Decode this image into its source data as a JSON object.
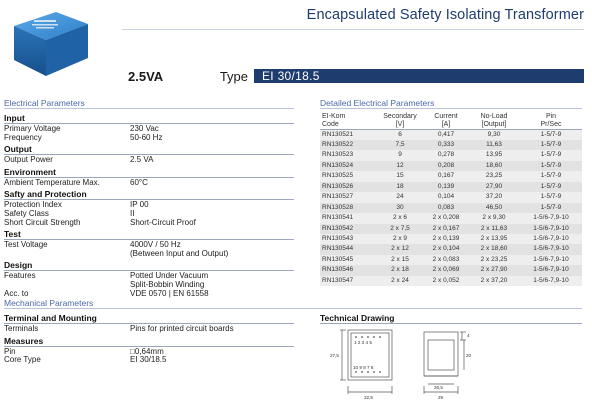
{
  "header": {
    "title": "Encapsulated Safety Isolating Transformer",
    "power_rating": "2.5VA",
    "type_label": "Type",
    "type_value": "EI 30/18.5"
  },
  "electrical_caption": "Electrical Parameters",
  "detailed_caption": "Detailed Electrical Parameters",
  "mechanical_caption": "Mechanical Parameters",
  "left_groups": [
    {
      "title": "Input",
      "rows": [
        {
          "k": "Primary Voltage",
          "v": "230 Vac"
        },
        {
          "k": "Frequency",
          "v": "50-60 Hz"
        }
      ]
    },
    {
      "title": "Output",
      "rows": [
        {
          "k": "Output Power",
          "v": "2.5 VA"
        }
      ]
    },
    {
      "title": "Environment",
      "rows": [
        {
          "k": "Ambient Temperature Max.",
          "v": "60°C"
        }
      ]
    },
    {
      "title": "Safty and Protection",
      "rows": [
        {
          "k": "Protection Index",
          "v": "IP 00"
        },
        {
          "k": "Safety Class",
          "v": "II"
        },
        {
          "k": "Short Circuit Strength",
          "v": "Short-Circuit Proof"
        }
      ]
    },
    {
      "title": "Test",
      "rows": [
        {
          "k": "Test Voltage",
          "v": "4000V / 50 Hz"
        },
        {
          "k": "",
          "v": "(Between Input and Output)"
        }
      ]
    },
    {
      "title": "Design",
      "rows": [
        {
          "k": "Features",
          "v": "Potted Under Vacuum"
        },
        {
          "k": "",
          "v": "Split-Bobbin Winding"
        },
        {
          "k": "Acc. to",
          "v": "VDE 0570 | EN 61558"
        }
      ]
    }
  ],
  "mech_groups": [
    {
      "title": "Terminal and Mounting",
      "rows": [
        {
          "k": "Terminals",
          "v": "Pins for printed circuit boards"
        }
      ]
    },
    {
      "title": "Measures",
      "rows": [
        {
          "k": "Pin",
          "v": "□0,64mm"
        },
        {
          "k": "Core Type",
          "v": "EI 30/18.5"
        }
      ]
    }
  ],
  "detail_table": {
    "headers": [
      [
        "EI-Kom",
        "Code"
      ],
      [
        "Secondary",
        "[V]"
      ],
      [
        "Current",
        "[A]"
      ],
      [
        "No-Load",
        "[Output]"
      ],
      [
        "Pin",
        "Pr/Sec"
      ]
    ],
    "rows": [
      [
        "RN130521",
        "6",
        "0,417",
        "9,30",
        "1-5/7-9"
      ],
      [
        "RN130522",
        "7,5",
        "0,333",
        "11,63",
        "1-5/7-9"
      ],
      [
        "RN130523",
        "9",
        "0,278",
        "13,95",
        "1-5/7-9"
      ],
      [
        "RN130524",
        "12",
        "0,208",
        "18,60",
        "1-5/7-9"
      ],
      [
        "RN130525",
        "15",
        "0,167",
        "23,25",
        "1-5/7-9"
      ],
      [
        "RN130526",
        "18",
        "0,139",
        "27,90",
        "1-5/7-9"
      ],
      [
        "RN130527",
        "24",
        "0,104",
        "37,20",
        "1-5/7-9"
      ],
      [
        "RN130528",
        "30",
        "0,083",
        "46,50",
        "1-5/7-9"
      ],
      [
        "RN130541",
        "2 x 6",
        "2 x 0,208",
        "2 x 9,30",
        "1-5/6-7,9-10"
      ],
      [
        "RN130542",
        "2 x 7,5",
        "2 x 0,167",
        "2 x 11,63",
        "1-5/6-7,9-10"
      ],
      [
        "RN130543",
        "2 x 9",
        "2 x 0,139",
        "2 x 13,95",
        "1-5/6-7,9-10"
      ],
      [
        "RN130544",
        "2 x 12",
        "2 x 0,104",
        "2 x 18,60",
        "1-5/6-7,9-10"
      ],
      [
        "RN130545",
        "2 x 15",
        "2 x 0,083",
        "2 x 23,25",
        "1-5/6-7,9-10"
      ],
      [
        "RN130546",
        "2 x 18",
        "2 x 0,069",
        "2 x 27,90",
        "1-5/6-7,9-10"
      ],
      [
        "RN130547",
        "2 x 24",
        "2 x 0,052",
        "2 x 37,20",
        "1-5/6-7,9-10"
      ]
    ]
  },
  "technical_drawing": {
    "title": "Technical Drawing",
    "pins_top": "1 2 3 4 5",
    "pins_bottom": "10 9 8 7 6",
    "dims": {
      "height_left": "27,5",
      "width_front": "32,5",
      "width_side": "29",
      "inner_width": "26,5",
      "side_height": "20",
      "top_gap": "4"
    }
  },
  "colors": {
    "brand": "#1f3c6e",
    "caption": "#4a6aa8",
    "row_even": "#eeeeee",
    "row_odd": "#e2e2e2"
  }
}
